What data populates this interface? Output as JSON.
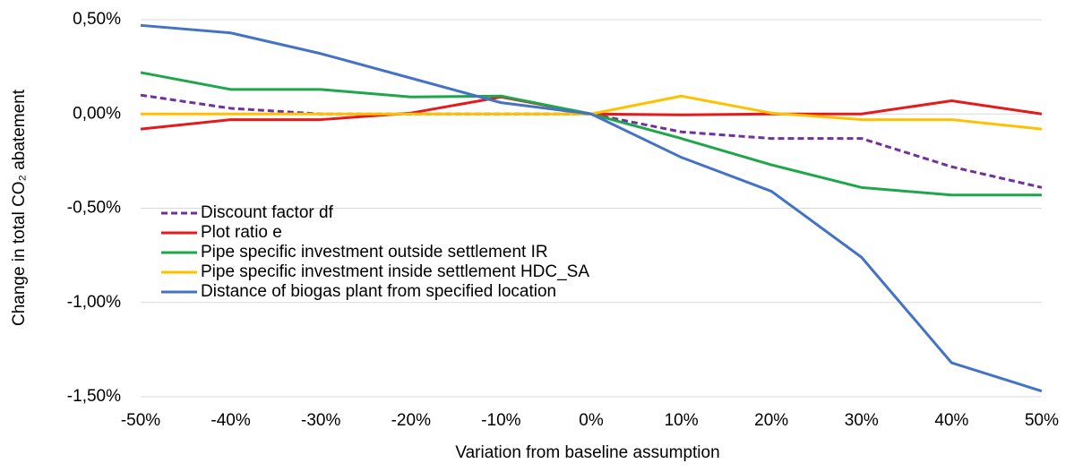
{
  "chart_data": {
    "type": "line",
    "xlabel": "Variation  from baseline assumption",
    "ylabel": "Change in total CO₂ abatement",
    "categories": [
      "-50%",
      "-40%",
      "-30%",
      "-20%",
      "-10%",
      "0%",
      "10%",
      "20%",
      "30%",
      "40%",
      "50%"
    ],
    "series": [
      {
        "name": "Discount factor df",
        "color": "#7030a0",
        "dashed": true,
        "values": [
          0.1,
          0.03,
          0,
          0,
          0,
          0,
          -0.095,
          -0.13,
          -0.13,
          -0.28,
          -0.39
        ]
      },
      {
        "name": "Plot ratio e",
        "color": "#e41a1c",
        "values": [
          -0.08,
          -0.03,
          -0.03,
          0.005,
          0.09,
          0,
          -0.005,
          0,
          0,
          0.07,
          0
        ]
      },
      {
        "name": "Pipe specific investment outside settlement IR",
        "color": "#1fa64a",
        "values": [
          0.22,
          0.13,
          0.13,
          0.09,
          0.095,
          0,
          -0.13,
          -0.27,
          -0.39,
          -0.43,
          -0.43
        ]
      },
      {
        "name": "Pipe specific investment inside settlement HDC_SA",
        "color": "#ffc000",
        "values": [
          0,
          0,
          0,
          0,
          0,
          0,
          0.095,
          0.005,
          -0.03,
          -0.03,
          -0.08
        ]
      },
      {
        "name": "Distance of biogas plant from specified location",
        "color": "#4472c4",
        "values": [
          0.47,
          0.43,
          0.32,
          0.19,
          0.06,
          0,
          -0.23,
          -0.41,
          -0.76,
          -1.32,
          -1.47
        ]
      }
    ],
    "ylim": [
      -1.5,
      0.5
    ],
    "yticks": [
      {
        "value": 0.5,
        "label": "0,50%"
      },
      {
        "value": 0,
        "label": "0,00%"
      },
      {
        "value": -0.5,
        "label": "-0,50%"
      },
      {
        "value": -1.0,
        "label": "-1,00%"
      },
      {
        "value": -1.5,
        "label": "-1,50%"
      }
    ],
    "grid": true,
    "legend": "lower left"
  }
}
